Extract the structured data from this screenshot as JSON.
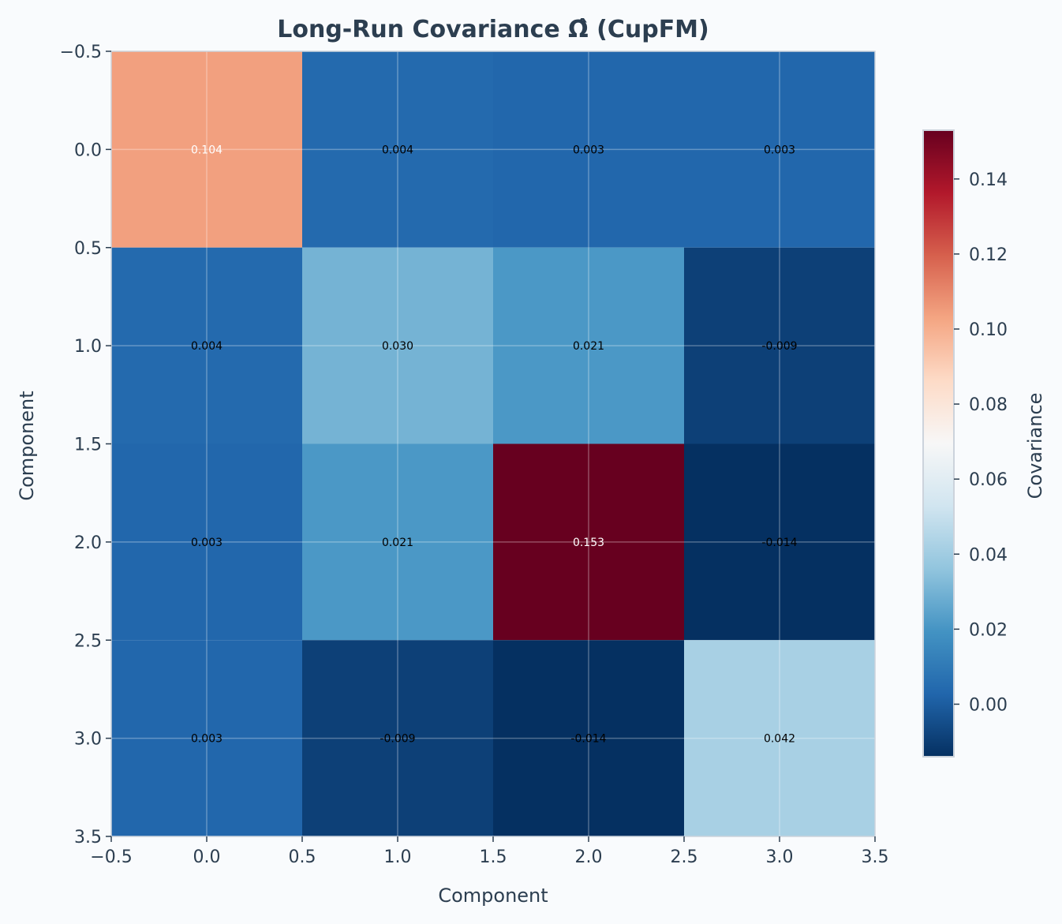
{
  "chart_data": {
    "type": "heatmap",
    "title": "Long-Run Covariance Ω̂ (CupFM)",
    "xlabel": "Component",
    "ylabel": "Component",
    "colorbar_label": "Covariance",
    "colormap": "RdBu_r",
    "vmin": -0.014,
    "vmax": 0.153,
    "xlim": [
      -0.5,
      3.5
    ],
    "ylim": [
      3.5,
      -0.5
    ],
    "xticks": [
      "−0.5",
      "0.0",
      "0.5",
      "1.0",
      "1.5",
      "2.0",
      "2.5",
      "3.0",
      "3.5"
    ],
    "yticks": [
      "−0.5",
      "0.0",
      "0.5",
      "1.0",
      "1.5",
      "2.0",
      "2.5",
      "3.0",
      "3.5"
    ],
    "colorbar_ticks": [
      "0.00",
      "0.02",
      "0.04",
      "0.06",
      "0.08",
      "0.10",
      "0.12",
      "0.14"
    ],
    "grid": true,
    "matrix": [
      [
        0.104,
        0.004,
        0.003,
        0.003
      ],
      [
        0.004,
        0.03,
        0.021,
        -0.009
      ],
      [
        0.003,
        0.021,
        0.153,
        -0.014
      ],
      [
        0.003,
        -0.009,
        -0.014,
        0.042
      ]
    ],
    "labels": [
      [
        "0.104",
        "0.004",
        "0.003",
        "0.003"
      ],
      [
        "0.004",
        "0.030",
        "0.021",
        "-0.009"
      ],
      [
        "0.003",
        "0.021",
        "0.153",
        "-0.014"
      ],
      [
        "0.003",
        "-0.009",
        "-0.014",
        "0.042"
      ]
    ]
  }
}
